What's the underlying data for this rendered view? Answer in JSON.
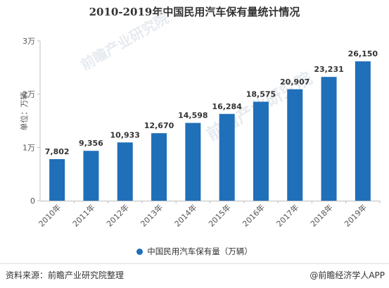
{
  "chart_data": {
    "type": "bar",
    "title": "2010-2019年中国民用汽车保有量统计情况",
    "ylabel": "单位：万辆",
    "xlabel": "",
    "categories": [
      "2010年",
      "2011年",
      "2012年",
      "2013年",
      "2014年",
      "2015年",
      "2016年",
      "2017年",
      "2018年",
      "2019年"
    ],
    "series": [
      {
        "name": "中国民用汽车保有量（万辆）",
        "values": [
          7802,
          9356,
          10933,
          12670,
          14598,
          16284,
          18575,
          20907,
          23231,
          26150
        ],
        "value_labels": [
          "7,802",
          "9,356",
          "10,933",
          "12,670",
          "14,598",
          "16,284",
          "18,575",
          "20,907",
          "23,231",
          "26,150"
        ]
      }
    ],
    "ylim": [
      0,
      30000
    ],
    "yticks": [
      0,
      10000,
      20000,
      30000
    ],
    "ytick_labels": [
      "0",
      "1万",
      "2万",
      "3万"
    ],
    "legend": "bottom-center",
    "grid": false,
    "bar_color": "#1f6fb9"
  },
  "footer": {
    "source": "资料来源：前瞻产业研究院整理",
    "credit": "@前瞻经济学人APP"
  },
  "watermark": {
    "text": "前瞻产业研究院"
  }
}
